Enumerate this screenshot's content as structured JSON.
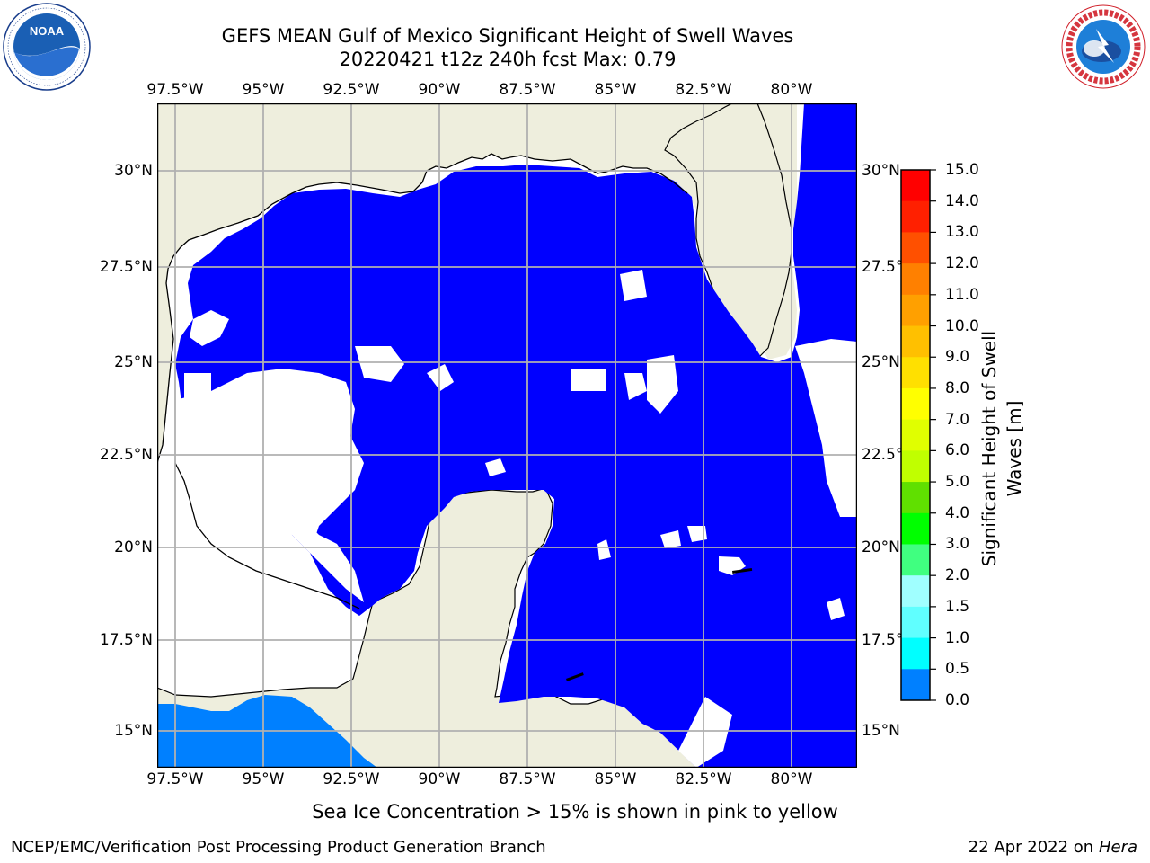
{
  "header": {
    "title_line1": "GEFS MEAN Gulf of Mexico Significant Height of Swell Waves",
    "title_line2": "20220421 t12z 240h fcst   Max: 0.79"
  },
  "logos": {
    "noaa_text": "NOAA",
    "noaa_ring_text": "NATIONAL OCEANIC AND ATMOSPHERIC ADMINISTRATION · U.S. DEPARTMENT OF COMMERCE",
    "nws_ring_text": "NATIONAL WEATHER SERVICE"
  },
  "map": {
    "lon_labels": [
      "97.5°W",
      "95°W",
      "92.5°W",
      "90°W",
      "87.5°W",
      "85°W",
      "82.5°W",
      "80°W"
    ],
    "lat_labels": [
      "30°N",
      "27.5°N",
      "25°N",
      "22.5°N",
      "20°N",
      "17.5°N",
      "15°N"
    ],
    "colors": {
      "land": "#eeeedd",
      "swell_low": "#0000ff",
      "swell_05": "#0080ff",
      "no_data": "#ffffff",
      "grid": "#b0b0b0"
    }
  },
  "colorbar": {
    "label_line1": "Significant Height of Swell",
    "label_line2": "Waves [m]",
    "ticks": [
      "15.0",
      "14.0",
      "13.0",
      "12.0",
      "11.0",
      "10.0",
      "9.0",
      "8.0",
      "7.0",
      "6.0",
      "5.0",
      "4.0",
      "3.0",
      "2.0",
      "1.5",
      "1.0",
      "0.5",
      "0.0"
    ],
    "colors": [
      "#ff0000",
      "#ff2000",
      "#ff5000",
      "#ff8000",
      "#ffa000",
      "#ffc000",
      "#ffe000",
      "#ffff00",
      "#e0ff00",
      "#c0ff00",
      "#60e000",
      "#00ff00",
      "#40ff80",
      "#a0ffff",
      "#60ffff",
      "#00ffff",
      "#0080ff",
      "#0000ff"
    ]
  },
  "note": "Sea Ice Concentration > 15% is shown in pink to yellow",
  "footer": {
    "left": "NCEP/EMC/Verification Post Processing Product Generation Branch",
    "date": "22 Apr 2022 on ",
    "host": "Hera"
  }
}
